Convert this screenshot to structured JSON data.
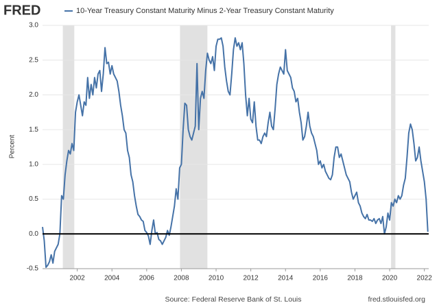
{
  "header": {
    "logo": "FRED"
  },
  "chart_data": {
    "type": "line",
    "ylabel": "Percent",
    "series": [
      {
        "name": "10-Year Treasury Constant Maturity Minus 2-Year Treasury Constant Maturity",
        "color": "#4572a7",
        "x": [
          2000.0,
          2000.1,
          2000.2,
          2000.3,
          2000.4,
          2000.5,
          2000.6,
          2000.7,
          2000.8,
          2000.9,
          2001.0,
          2001.1,
          2001.2,
          2001.3,
          2001.4,
          2001.5,
          2001.6,
          2001.7,
          2001.8,
          2001.9,
          2002.0,
          2002.1,
          2002.2,
          2002.3,
          2002.4,
          2002.5,
          2002.6,
          2002.7,
          2002.8,
          2002.9,
          2003.0,
          2003.1,
          2003.2,
          2003.3,
          2003.4,
          2003.5,
          2003.6,
          2003.7,
          2003.8,
          2003.9,
          2004.0,
          2004.1,
          2004.2,
          2004.3,
          2004.4,
          2004.5,
          2004.6,
          2004.7,
          2004.8,
          2004.9,
          2005.0,
          2005.1,
          2005.2,
          2005.3,
          2005.4,
          2005.5,
          2005.6,
          2005.7,
          2005.8,
          2005.9,
          2006.0,
          2006.1,
          2006.2,
          2006.3,
          2006.4,
          2006.5,
          2006.6,
          2006.7,
          2006.8,
          2006.9,
          2007.0,
          2007.1,
          2007.2,
          2007.3,
          2007.4,
          2007.5,
          2007.6,
          2007.7,
          2007.8,
          2007.9,
          2008.0,
          2008.1,
          2008.2,
          2008.3,
          2008.4,
          2008.5,
          2008.6,
          2008.7,
          2008.8,
          2008.9,
          2009.0,
          2009.1,
          2009.2,
          2009.3,
          2009.4,
          2009.5,
          2009.6,
          2009.7,
          2009.8,
          2009.9,
          2010.0,
          2010.1,
          2010.2,
          2010.3,
          2010.4,
          2010.5,
          2010.6,
          2010.7,
          2010.8,
          2010.9,
          2011.0,
          2011.1,
          2011.2,
          2011.3,
          2011.4,
          2011.5,
          2011.6,
          2011.7,
          2011.8,
          2011.9,
          2012.0,
          2012.1,
          2012.2,
          2012.3,
          2012.4,
          2012.5,
          2012.6,
          2012.7,
          2012.8,
          2012.9,
          2013.0,
          2013.1,
          2013.2,
          2013.3,
          2013.4,
          2013.5,
          2013.6,
          2013.7,
          2013.8,
          2013.9,
          2014.0,
          2014.1,
          2014.2,
          2014.3,
          2014.4,
          2014.5,
          2014.6,
          2014.7,
          2014.8,
          2014.9,
          2015.0,
          2015.1,
          2015.2,
          2015.3,
          2015.4,
          2015.5,
          2015.6,
          2015.7,
          2015.8,
          2015.9,
          2016.0,
          2016.1,
          2016.2,
          2016.3,
          2016.4,
          2016.5,
          2016.6,
          2016.7,
          2016.8,
          2016.9,
          2017.0,
          2017.1,
          2017.2,
          2017.3,
          2017.4,
          2017.5,
          2017.6,
          2017.7,
          2017.8,
          2017.9,
          2018.0,
          2018.1,
          2018.2,
          2018.3,
          2018.4,
          2018.5,
          2018.6,
          2018.7,
          2018.8,
          2018.9,
          2019.0,
          2019.1,
          2019.2,
          2019.3,
          2019.4,
          2019.5,
          2019.6,
          2019.7,
          2019.8,
          2019.9,
          2020.0,
          2020.1,
          2020.2,
          2020.3,
          2020.4,
          2020.5,
          2020.6,
          2020.7,
          2020.8,
          2020.9,
          2021.0,
          2021.1,
          2021.2,
          2021.3,
          2021.4,
          2021.5,
          2021.6,
          2021.7,
          2021.8,
          2021.9,
          2022.0,
          2022.1,
          2022.2
        ],
        "values": [
          0.1,
          -0.1,
          -0.48,
          -0.45,
          -0.4,
          -0.3,
          -0.42,
          -0.25,
          -0.2,
          -0.15,
          0.0,
          0.55,
          0.5,
          0.85,
          1.05,
          1.2,
          1.15,
          1.3,
          1.2,
          1.75,
          1.9,
          2.0,
          1.85,
          1.7,
          1.9,
          1.85,
          2.25,
          1.95,
          2.15,
          2.0,
          2.25,
          2.1,
          2.3,
          2.35,
          2.05,
          2.3,
          2.68,
          2.45,
          2.47,
          2.3,
          2.42,
          2.3,
          2.25,
          2.2,
          2.05,
          1.85,
          1.7,
          1.5,
          1.45,
          1.2,
          1.1,
          0.85,
          0.75,
          0.55,
          0.4,
          0.28,
          0.25,
          0.2,
          0.18,
          0.05,
          0.02,
          -0.03,
          -0.15,
          0.05,
          0.2,
          0.0,
          0.02,
          -0.08,
          -0.1,
          -0.15,
          -0.1,
          -0.05,
          0.05,
          -0.02,
          0.1,
          0.25,
          0.4,
          0.65,
          0.5,
          0.95,
          1.0,
          1.5,
          1.88,
          1.85,
          1.5,
          1.4,
          1.35,
          1.45,
          1.55,
          2.45,
          1.5,
          1.95,
          2.05,
          1.95,
          2.35,
          2.6,
          2.5,
          2.45,
          2.55,
          2.35,
          2.7,
          2.8,
          2.8,
          2.82,
          2.7,
          2.4,
          2.2,
          2.05,
          2.0,
          2.3,
          2.65,
          2.82,
          2.7,
          2.75,
          2.65,
          2.75,
          2.45,
          2.0,
          1.7,
          1.95,
          1.65,
          1.6,
          1.9,
          1.55,
          1.35,
          1.35,
          1.3,
          1.4,
          1.45,
          1.4,
          1.6,
          1.75,
          1.55,
          1.5,
          1.8,
          2.15,
          2.3,
          2.4,
          2.35,
          2.3,
          2.65,
          2.35,
          2.3,
          2.25,
          2.1,
          2.05,
          1.9,
          1.95,
          1.75,
          1.6,
          1.35,
          1.4,
          1.55,
          1.75,
          1.55,
          1.45,
          1.4,
          1.3,
          1.2,
          1.0,
          1.05,
          0.95,
          1.0,
          0.9,
          0.85,
          0.8,
          0.78,
          0.85,
          1.1,
          1.25,
          1.25,
          1.1,
          1.15,
          1.05,
          0.95,
          0.85,
          0.8,
          0.75,
          0.6,
          0.5,
          0.55,
          0.6,
          0.45,
          0.4,
          0.3,
          0.25,
          0.22,
          0.28,
          0.2,
          0.2,
          0.18,
          0.22,
          0.15,
          0.2,
          0.22,
          0.15,
          0.25,
          0.0,
          0.1,
          0.3,
          0.2,
          0.45,
          0.4,
          0.5,
          0.45,
          0.55,
          0.5,
          0.55,
          0.7,
          0.8,
          1.1,
          1.45,
          1.58,
          1.5,
          1.3,
          1.05,
          1.1,
          1.25,
          1.05,
          0.9,
          0.75,
          0.5,
          0.03
        ]
      }
    ],
    "recessions": [
      [
        2001.17,
        2001.83
      ],
      [
        2007.92,
        2009.5
      ],
      [
        2020.08,
        2020.33
      ]
    ],
    "xlim": [
      2000.0,
      2022.25
    ],
    "xticks": [
      2002,
      2004,
      2006,
      2008,
      2010,
      2012,
      2014,
      2016,
      2018,
      2020,
      2022
    ],
    "ylim": [
      -0.5,
      3.0
    ],
    "yticks": [
      -0.5,
      {
        "value": 0,
        "label": "0.0"
      },
      0.5,
      {
        "value": 1,
        "label": "1.0"
      },
      1.5,
      {
        "value": 2,
        "label": "2.0"
      },
      2.5,
      {
        "value": 3,
        "label": "3.0"
      }
    ],
    "grid": true,
    "zero_line": true
  },
  "footer": {
    "source": "Source: Federal Reserve Bank of St. Louis",
    "url": "fred.stlouisfed.org"
  }
}
